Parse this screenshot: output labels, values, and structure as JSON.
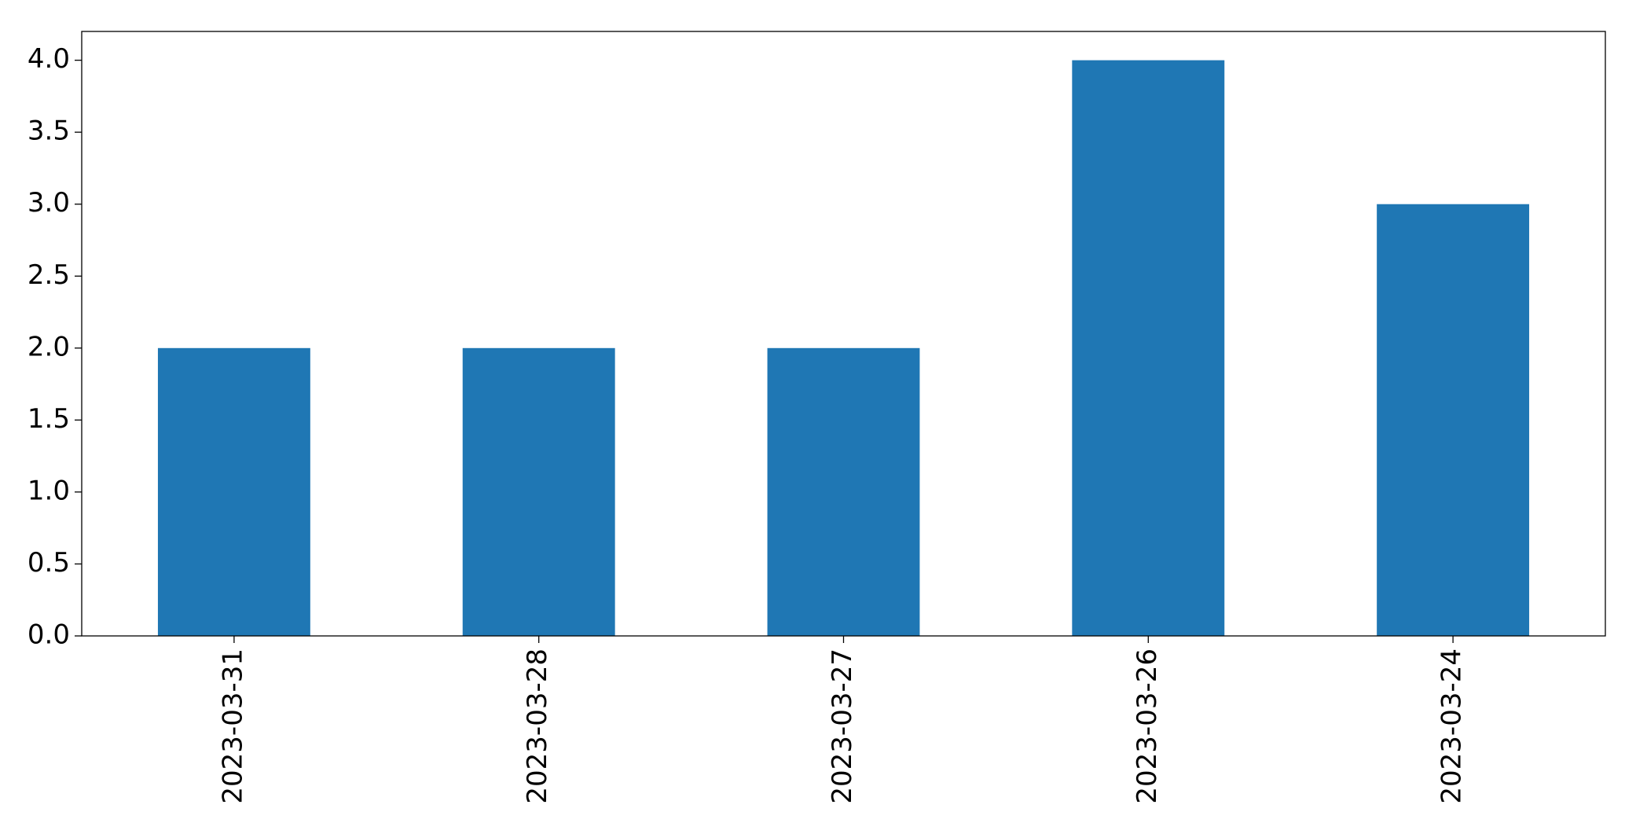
{
  "chart_data": {
    "type": "bar",
    "categories": [
      "2023-03-31",
      "2023-03-28",
      "2023-03-27",
      "2023-03-26",
      "2023-03-24"
    ],
    "values": [
      2,
      2,
      2,
      4,
      3
    ],
    "color": "#1f77b4",
    "ylim": [
      0,
      4.2
    ],
    "yticks": [
      {
        "value": 0,
        "label": "0.0"
      },
      {
        "value": 0.5,
        "label": "0.5"
      },
      {
        "value": 1,
        "label": "1.0"
      },
      {
        "value": 1.5,
        "label": "1.5"
      },
      {
        "value": 2,
        "label": "2.0"
      },
      {
        "value": 2.5,
        "label": "2.5"
      },
      {
        "value": 3,
        "label": "3.0"
      },
      {
        "value": 3.5,
        "label": "3.5"
      },
      {
        "value": 4,
        "label": "4.0"
      }
    ],
    "grid": false
  }
}
